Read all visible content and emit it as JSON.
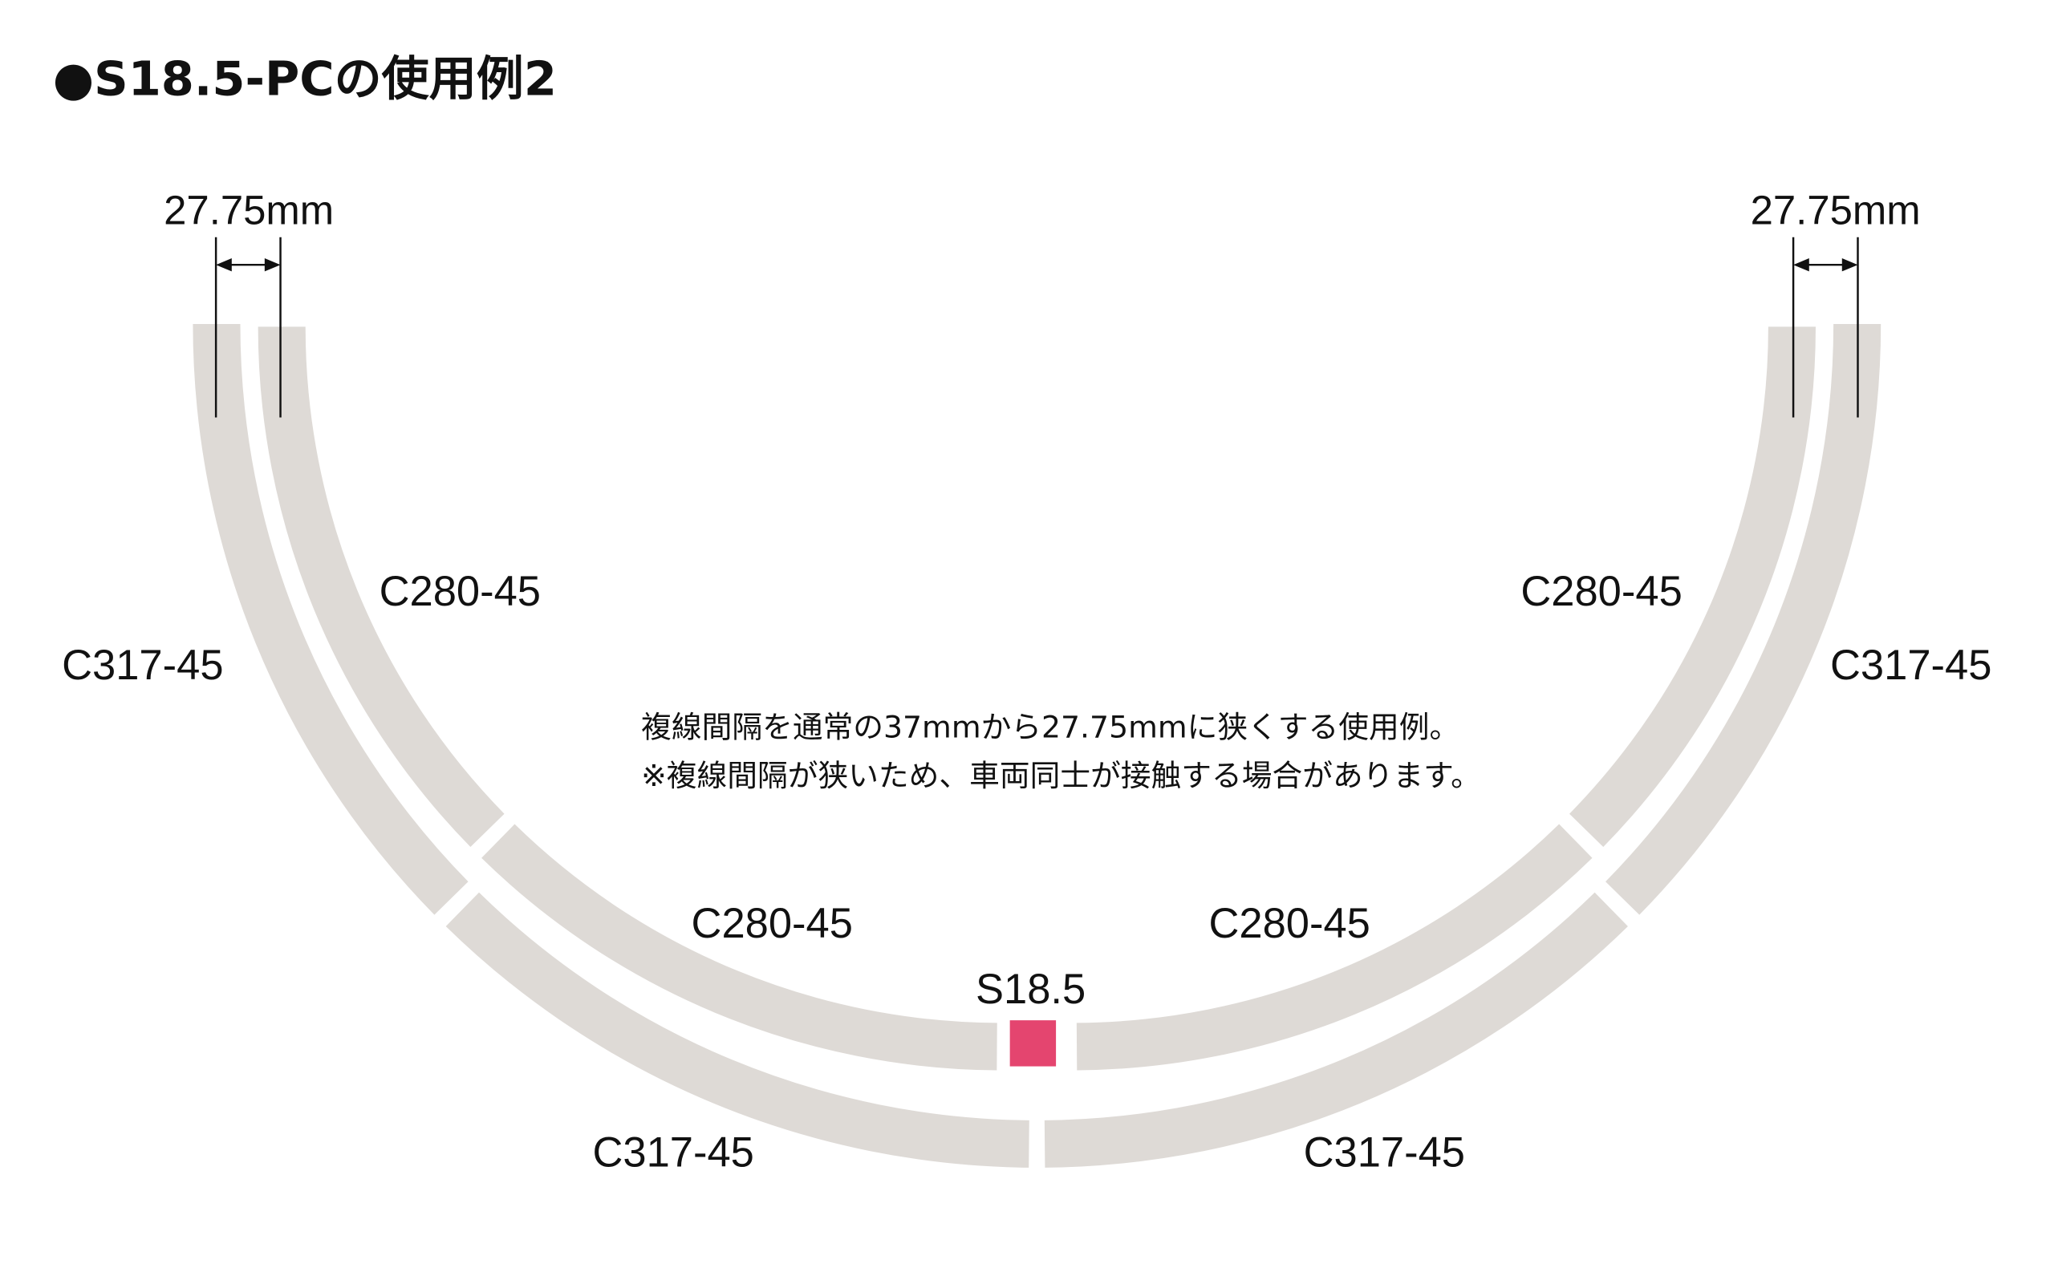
{
  "title": "●S18.5-PCの使用例2",
  "dimension": {
    "left": "27.75mm",
    "right": "27.75mm"
  },
  "labels": {
    "inner_left_upper": "C280-45",
    "outer_left_upper": "C317-45",
    "inner_right_upper": "C280-45",
    "outer_right_upper": "C317-45",
    "inner_left_lower": "C280-45",
    "inner_right_lower": "C280-45",
    "straight": "S18.5",
    "outer_left_lower": "C317-45",
    "outer_right_lower": "C317-45"
  },
  "note": {
    "line1": "複線間隔を通常の37mmから27.75mmに狭くする使用例。",
    "line2": "※複線間隔が狭いため、車両同士が接触する場合があります。"
  },
  "colors": {
    "track": "#dedad6",
    "highlight": "#e4456f"
  }
}
